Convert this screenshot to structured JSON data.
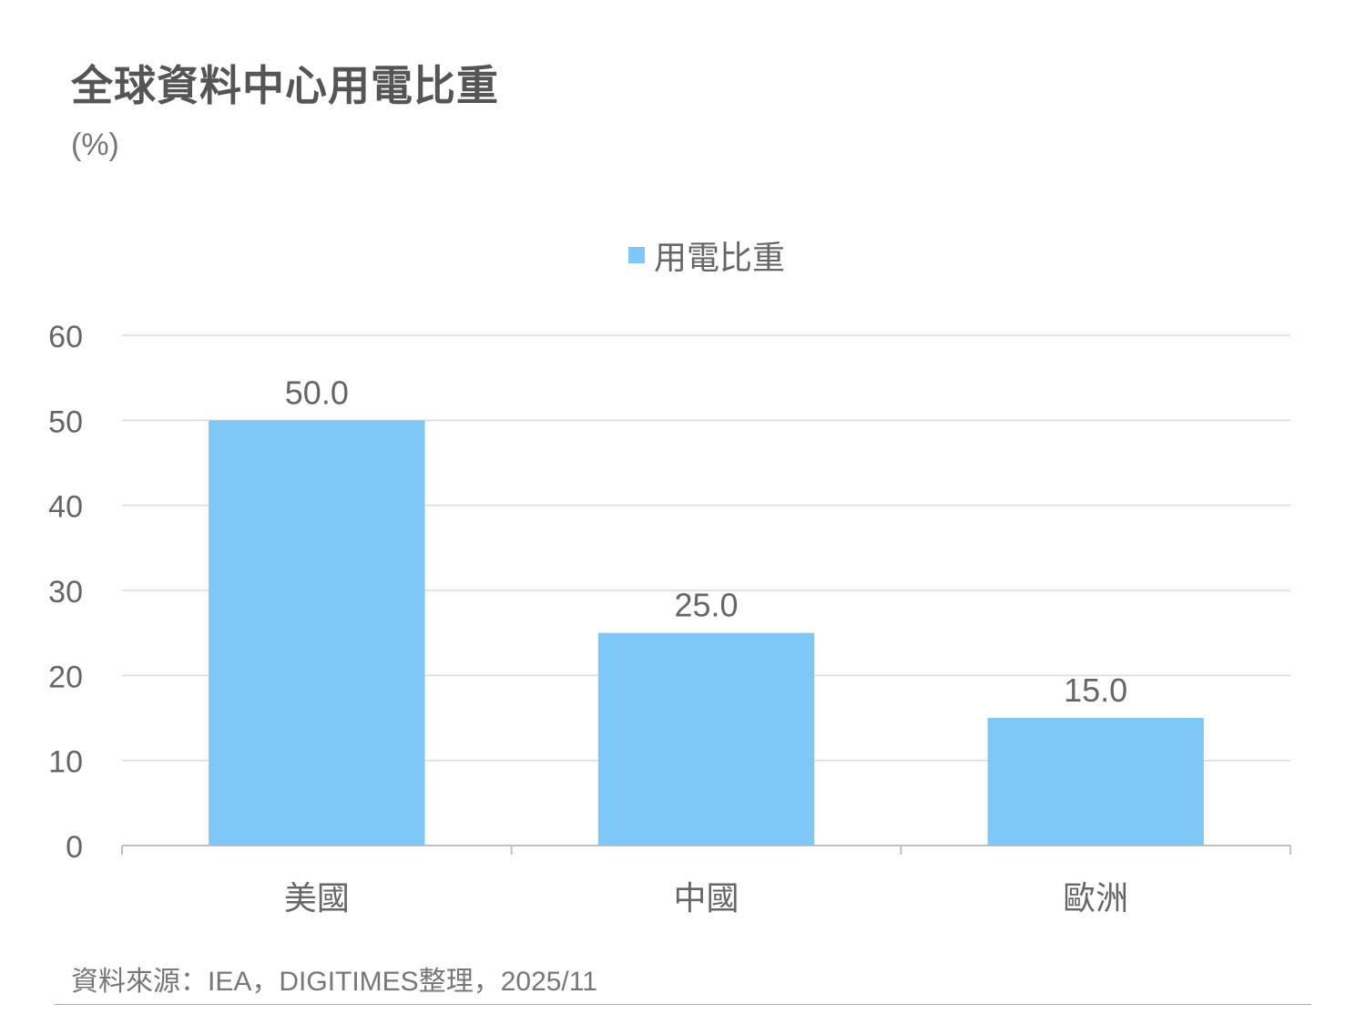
{
  "chart_data": {
    "type": "bar",
    "title": "全球資料中心用電比重",
    "unit_label": "(%)",
    "categories": [
      "美國",
      "中國",
      "歐洲"
    ],
    "series": [
      {
        "name": "用電比重",
        "values": [
          50.0,
          25.0,
          15.0
        ],
        "data_labels": [
          "50.0",
          "25.0",
          "15.0"
        ]
      }
    ],
    "ylim": [
      0,
      60
    ],
    "yticks": [
      0,
      10,
      20,
      30,
      40,
      50,
      60
    ],
    "ytick_labels": [
      "0",
      "10",
      "20",
      "30",
      "40",
      "50",
      "60"
    ],
    "grid": true,
    "legend_position": "top-center",
    "colors": {
      "bar": "#7ec8f8",
      "grid": "#d9d9d9",
      "axis": "#bfbfbf",
      "tick_text": "#666666",
      "label_text": "#666666"
    }
  },
  "source": "資料來源：IEA，DIGITIMES整理，2025/11"
}
